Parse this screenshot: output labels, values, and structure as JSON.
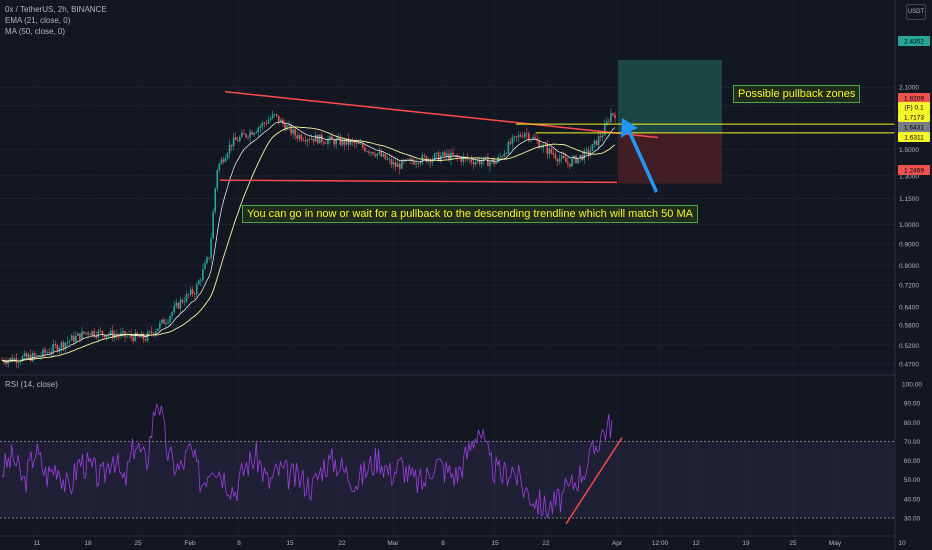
{
  "header": {
    "title": "0x / TetherUS, 2h, BINANCE",
    "ema": "EMA (21, close, 0)",
    "ma": "MA (50, close, 0)",
    "scale": "USDT"
  },
  "rsi_pane": {
    "label": "RSI (14, close)"
  },
  "annotations": {
    "pullback": "Possible pullback zones",
    "advice": "You can go in now or wait for a pullback to the descending trendline which will match 50 MA"
  },
  "colors": {
    "background": "#131722",
    "up": "#26a69a",
    "down": "#ef5350",
    "ema": "#ffffff",
    "ma": "#f5f5a0",
    "trendline": "#ff4d4d",
    "yellow": "#f5f52a",
    "rsi": "#9c3fe0",
    "target_zone": "#1e4f47",
    "stop_zone": "#4a2025",
    "arrow": "#2196f3"
  },
  "chart_data": [
    {
      "type": "candlestick",
      "title": "0x / TetherUS, 2h, BINANCE",
      "yscale": "log",
      "y_ticks": [
        "2.1000",
        "1.9000",
        "1.5000",
        "1.3000",
        "1.1500",
        "1.0000",
        "0.9000",
        "0.8000",
        "0.7200",
        "0.6400",
        "0.5800",
        "0.5200",
        "0.4700"
      ],
      "x_ticks": [
        "11",
        "18",
        "25",
        "Feb",
        "8",
        "15",
        "22",
        "Mar",
        "8",
        "15",
        "22",
        "Apr",
        "12:00",
        "12",
        "19",
        "25",
        "May",
        "10"
      ],
      "price_badges": [
        {
          "label": "2.4352",
          "color": "#26a69a"
        },
        {
          "label": "1.8209",
          "color": "#ef5350"
        },
        {
          "label": "(F) 0.1",
          "color": "#f5f52a"
        },
        {
          "label": "1.7173",
          "color": "#f5f52a"
        },
        {
          "label": "1.6431",
          "color": "#787b86"
        },
        {
          "label": "1.6311",
          "color": "#f5f52a"
        },
        {
          "label": "1.2469",
          "color": "#ef5350"
        }
      ],
      "overlays": [
        "EMA 21",
        "MA 50"
      ],
      "trendlines": [
        {
          "name": "descending resistance",
          "from": [
            "late Jan",
            2.05
          ],
          "to": [
            "Apr 1",
            1.62
          ]
        },
        {
          "name": "support",
          "from": [
            "Feb 4",
            1.27
          ],
          "to": [
            "Apr 1",
            1.26
          ]
        }
      ],
      "horizontal_levels": [
        1.72,
        1.64
      ],
      "position": {
        "entry": 1.64,
        "target": 2.4352,
        "stop": 1.2469
      },
      "approximate_path": [
        {
          "date": "Jan 6",
          "close": 0.48
        },
        {
          "date": "Jan 11",
          "close": 0.49
        },
        {
          "date": "Jan 15",
          "close": 0.53
        },
        {
          "date": "Jan 18",
          "close": 0.56
        },
        {
          "date": "Jan 22",
          "close": 0.55
        },
        {
          "date": "Jan 26",
          "close": 0.54
        },
        {
          "date": "Jan 29",
          "close": 0.6
        },
        {
          "date": "Jan 31",
          "close": 0.66
        },
        {
          "date": "Feb 2",
          "close": 0.7
        },
        {
          "date": "Feb 4",
          "close": 0.85
        },
        {
          "date": "Feb 5",
          "close": 1.35
        },
        {
          "date": "Feb 7",
          "close": 1.55
        },
        {
          "date": "Feb 11",
          "close": 1.7
        },
        {
          "date": "Feb 13",
          "close": 1.8
        },
        {
          "date": "Feb 16",
          "close": 1.62
        },
        {
          "date": "Feb 20",
          "close": 1.58
        },
        {
          "date": "Feb 24",
          "close": 1.55
        },
        {
          "date": "Feb 27",
          "close": 1.48
        },
        {
          "date": "Mar 2",
          "close": 1.37
        },
        {
          "date": "Mar 5",
          "close": 1.42
        },
        {
          "date": "Mar 9",
          "close": 1.45
        },
        {
          "date": "Mar 13",
          "close": 1.41
        },
        {
          "date": "Mar 16",
          "close": 1.4
        },
        {
          "date": "Mar 18",
          "close": 1.55
        },
        {
          "date": "Mar 20",
          "close": 1.65
        },
        {
          "date": "Mar 23",
          "close": 1.5
        },
        {
          "date": "Mar 26",
          "close": 1.39
        },
        {
          "date": "Mar 29",
          "close": 1.48
        },
        {
          "date": "Mar 31",
          "close": 1.65
        },
        {
          "date": "Apr 1",
          "close": 1.82
        }
      ]
    },
    {
      "type": "line",
      "title": "RSI (14, close)",
      "ylim": [
        30,
        100
      ],
      "y_ticks": [
        "100.00",
        "90.00",
        "80.00",
        "70.00",
        "60.00",
        "50.00",
        "40.00",
        "30.00"
      ],
      "band": [
        30,
        70
      ],
      "series": [
        {
          "name": "RSI",
          "values": [
            55,
            62,
            48,
            66,
            52,
            58,
            44,
            60,
            56,
            50,
            64,
            47,
            70,
            58,
            95,
            62,
            55,
            66,
            48,
            60,
            52,
            44,
            58,
            62,
            48,
            55,
            52,
            50,
            46,
            58,
            60,
            54,
            49,
            56,
            62,
            53,
            58,
            50,
            48,
            60,
            55,
            52,
            64,
            78,
            58,
            52,
            56,
            46,
            40,
            35,
            38,
            44,
            52,
            60,
            74,
            80
          ]
        }
      ],
      "trendline": {
        "from": 30,
        "to": 72
      }
    }
  ]
}
